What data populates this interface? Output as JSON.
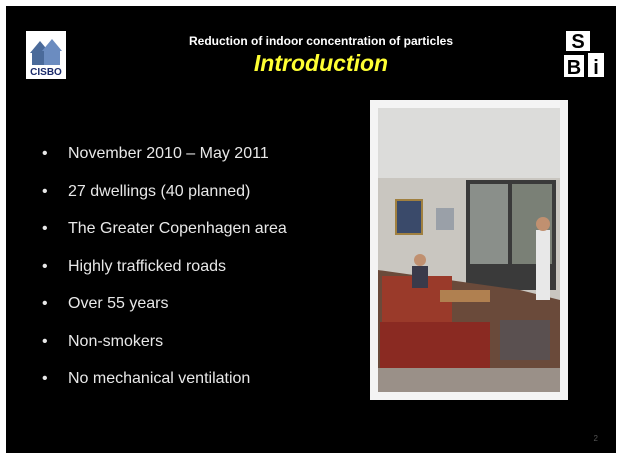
{
  "header": {
    "subtitle": "Reduction of indoor concentration of particles",
    "title": "Introduction",
    "logo_left": "CISBO",
    "logo_right": [
      "S",
      "B",
      "i"
    ]
  },
  "bullets": [
    "November 2010 – May 2011",
    "27 dwellings  (40 planned)",
    "The Greater Copenhagen area",
    "Highly trafficked roads",
    "Over 55 years",
    "Non-smokers",
    "No mechanical ventilation"
  ],
  "page_number": "2"
}
